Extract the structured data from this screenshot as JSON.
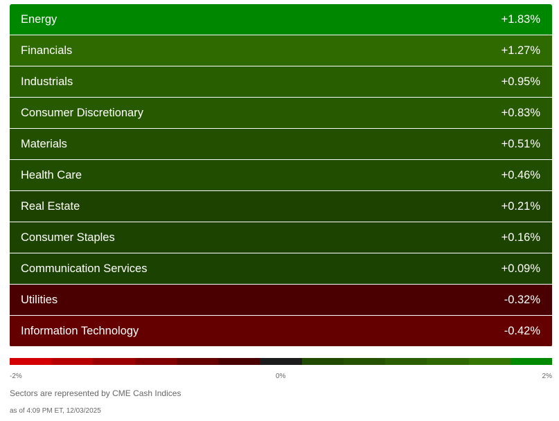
{
  "chart_data": {
    "type": "table",
    "categories": [
      "Energy",
      "Financials",
      "Industrials",
      "Consumer Discretionary",
      "Materials",
      "Health Care",
      "Real Estate",
      "Consumer Staples",
      "Communication Services",
      "Utilities",
      "Information Technology"
    ],
    "values": [
      1.83,
      1.27,
      0.95,
      0.83,
      0.51,
      0.46,
      0.21,
      0.16,
      0.09,
      -0.32,
      -0.42
    ],
    "rows": [
      {
        "sector": "Energy",
        "change": "+1.83%",
        "value": 1.83,
        "color": "#008700"
      },
      {
        "sector": "Financials",
        "change": "+1.27%",
        "value": 1.27,
        "color": "#2e6a00"
      },
      {
        "sector": "Industrials",
        "change": "+0.95%",
        "value": 0.95,
        "color": "#295e00"
      },
      {
        "sector": "Consumer Discretionary",
        "change": "+0.83%",
        "value": 0.83,
        "color": "#275a00"
      },
      {
        "sector": "Materials",
        "change": "+0.51%",
        "value": 0.51,
        "color": "#224f00"
      },
      {
        "sector": "Health Care",
        "change": "+0.46%",
        "value": 0.46,
        "color": "#214d00"
      },
      {
        "sector": "Real Estate",
        "change": "+0.21%",
        "value": 0.21,
        "color": "#1d4200"
      },
      {
        "sector": "Consumer Staples",
        "change": "+0.16%",
        "value": 0.16,
        "color": "#1c4400"
      },
      {
        "sector": "Communication Services",
        "change": "+0.09%",
        "value": 0.09,
        "color": "#1b4200"
      },
      {
        "sector": "Utilities",
        "change": "-0.32%",
        "value": -0.32,
        "color": "#4a0000"
      },
      {
        "sector": "Information Technology",
        "change": "-0.42%",
        "value": -0.42,
        "color": "#650000"
      }
    ],
    "scale": {
      "min_label": "-2%",
      "mid_label": "0%",
      "max_label": "2%",
      "range": [
        -2,
        2
      ],
      "colors": [
        "#d40000",
        "#b80000",
        "#9a0000",
        "#800000",
        "#650000",
        "#4a0000",
        "#1c1c1c",
        "#1f4a00",
        "#245200",
        "#2a5e00",
        "#2f6800",
        "#357600",
        "#008a00"
      ]
    },
    "source_note": "Sectors are represented by CME Cash Indices",
    "timestamp": "as of 4:09 PM ET, 12/03/2025"
  }
}
